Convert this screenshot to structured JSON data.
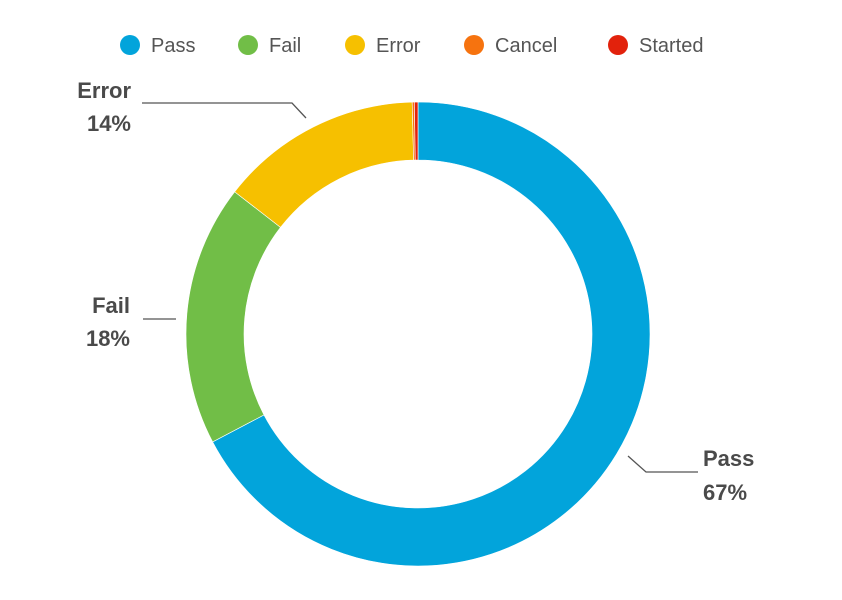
{
  "chart_data": {
    "type": "pie",
    "variant": "donut",
    "legend_position": "top",
    "series": [
      {
        "name": "Pass",
        "value": 67.3,
        "label": "Pass",
        "percent_label": "67%",
        "color": "#02a4db"
      },
      {
        "name": "Fail",
        "value": 18.2,
        "label": "Fail",
        "percent_label": "18%",
        "color": "#71be47"
      },
      {
        "name": "Error",
        "value": 14.1,
        "label": "Error",
        "percent_label": "14%",
        "color": "#f6c000"
      },
      {
        "name": "Cancel",
        "value": 0.15,
        "label": "",
        "percent_label": "",
        "color": "#f6730f"
      },
      {
        "name": "Started",
        "value": 0.25,
        "label": "",
        "percent_label": "",
        "color": "#e2220c"
      }
    ]
  }
}
